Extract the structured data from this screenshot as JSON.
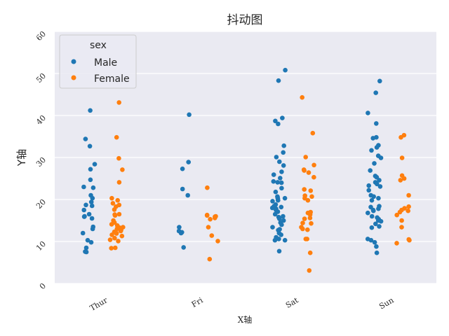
{
  "chart_data": {
    "type": "scatter",
    "title": "抖动图",
    "xlabel": "X轴",
    "ylabel": "Y轴",
    "categories": [
      "Thur",
      "Fri",
      "Sat",
      "Sun"
    ],
    "ylim": [
      0,
      60
    ],
    "yticks": [
      "0",
      "10",
      "20",
      "30",
      "40",
      "50",
      "60"
    ],
    "grid": true,
    "legend": {
      "title": "sex",
      "position": "top-left"
    },
    "series": [
      {
        "name": "Male",
        "color": "#1f77b4",
        "points": {
          "Thur": [
            41.2,
            34.4,
            32.7,
            28.4,
            27.2,
            24.7,
            23.0,
            22.8,
            21.0,
            20.3,
            19.4,
            18.7,
            18.5,
            17.5,
            16.5,
            16.0,
            15.9,
            15.5,
            13.5,
            13.0,
            12.0,
            10.3,
            9.8,
            8.5,
            7.6,
            7.5
          ],
          "Fri": [
            40.2,
            28.9,
            27.3,
            22.5,
            21.0,
            13.4,
            12.5,
            12.0,
            12.2,
            8.6
          ],
          "Sat": [
            50.8,
            48.3,
            39.4,
            38.7,
            38.0,
            32.8,
            31.2,
            30.1,
            29.0,
            28.1,
            26.6,
            25.9,
            25.1,
            24.3,
            24.0,
            24.1,
            22.7,
            21.8,
            20.7,
            20.5,
            20.2,
            20.3,
            19.8,
            19.6,
            18.8,
            18.4,
            18.2,
            18.0,
            17.8,
            17.5,
            17.1,
            16.5,
            16.0,
            15.8,
            15.4,
            15.0,
            14.5,
            14.0,
            13.4,
            12.9,
            12.7,
            12.0,
            11.6,
            11.0,
            10.6,
            10.3,
            10.3,
            7.7
          ],
          "Sun": [
            48.2,
            45.4,
            40.6,
            38.1,
            34.8,
            34.6,
            32.9,
            32.4,
            31.7,
            30.4,
            29.9,
            28.6,
            26.9,
            25.6,
            25.3,
            24.6,
            24.1,
            23.7,
            23.3,
            23.1,
            22.2,
            21.0,
            20.7,
            20.3,
            19.8,
            18.4,
            18.2,
            17.8,
            17.5,
            17.3,
            16.8,
            16.0,
            15.7,
            15.3,
            15.0,
            14.8,
            14.2,
            13.6,
            13.3,
            10.6,
            10.3,
            9.8,
            8.8,
            7.3
          ]
        }
      },
      {
        "name": "Female",
        "color": "#ff7f0e",
        "points": {
          "Thur": [
            43.1,
            34.8,
            29.8,
            27.1,
            24.1,
            20.3,
            19.8,
            19.1,
            18.7,
            18.3,
            17.6,
            16.5,
            16.4,
            16.2,
            15.0,
            14.5,
            14.1,
            13.8,
            13.4,
            13.3,
            13.0,
            12.7,
            12.5,
            12.3,
            12.0,
            11.9,
            11.6,
            11.3,
            10.8,
            10.4,
            10.1,
            8.5,
            8.4
          ],
          "Fri": [
            22.8,
            16.3,
            16.2,
            16.0,
            15.9,
            15.6,
            15.3,
            13.4,
            11.4,
            10.1,
            5.8
          ],
          "Sat": [
            44.3,
            35.8,
            30.1,
            28.2,
            27.1,
            26.9,
            26.4,
            25.3,
            22.4,
            22.1,
            20.9,
            20.7,
            20.3,
            19.8,
            17.0,
            16.8,
            16.4,
            15.6,
            15.4,
            14.4,
            14.3,
            13.4,
            13.0,
            12.8,
            10.6,
            10.6,
            7.3,
            3.1
          ],
          "Sun": [
            35.3,
            34.8,
            29.9,
            25.7,
            25.0,
            24.6,
            21.0,
            18.3,
            17.9,
            17.5,
            17.3,
            17.0,
            16.3,
            15.0,
            13.4,
            10.5,
            10.3,
            9.6
          ]
        }
      }
    ]
  }
}
